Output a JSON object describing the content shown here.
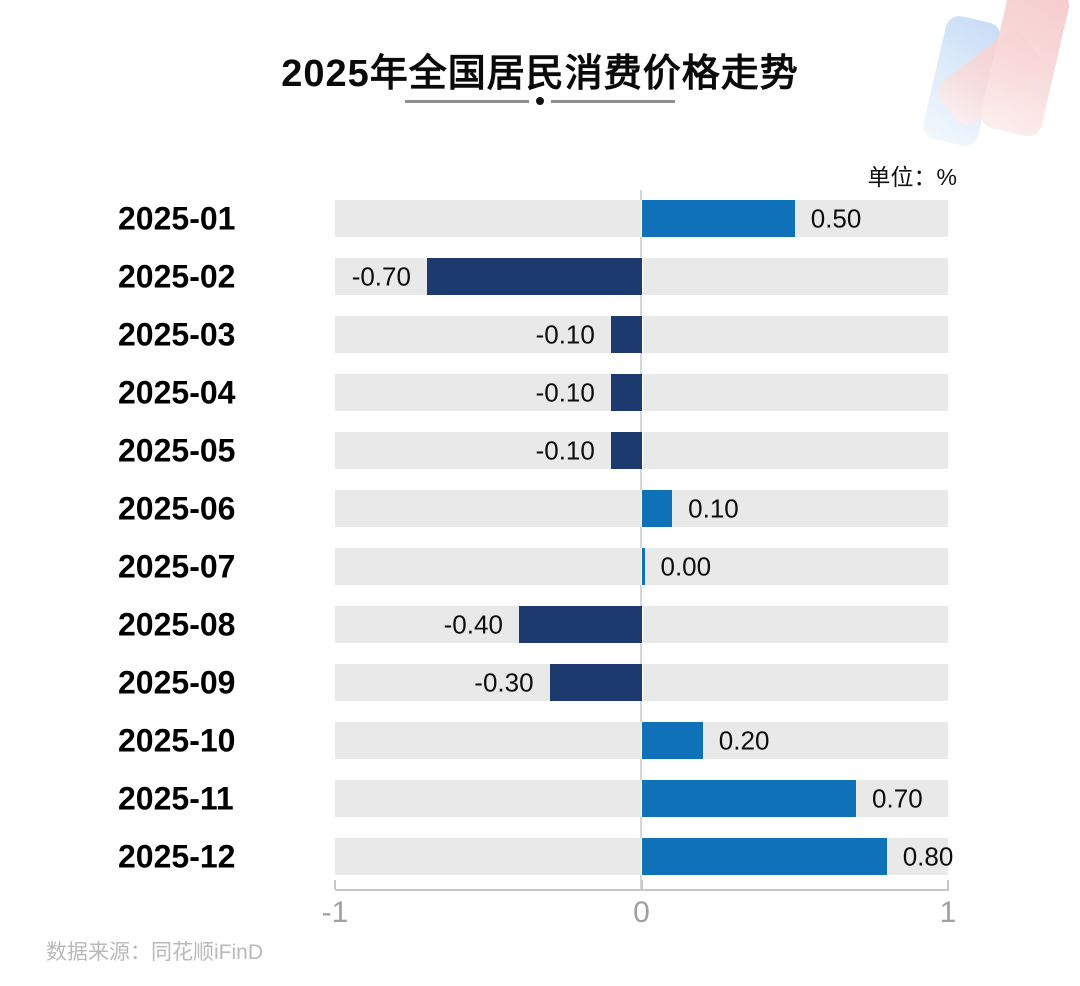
{
  "title": "2025年全国居民消费价格走势",
  "unit_label": "单位：%",
  "source": "数据来源：同花顺iFinD",
  "chart_data": {
    "type": "bar",
    "orientation": "horizontal",
    "title": "2025年全国居民消费价格走势",
    "unit": "%",
    "categories": [
      "2025-01",
      "2025-02",
      "2025-03",
      "2025-04",
      "2025-05",
      "2025-06",
      "2025-07",
      "2025-08",
      "2025-09",
      "2025-10",
      "2025-11",
      "2025-12"
    ],
    "values": [
      0.5,
      -0.7,
      -0.1,
      -0.1,
      -0.1,
      0.1,
      0.0,
      -0.4,
      -0.3,
      0.2,
      0.7,
      0.8
    ],
    "value_labels": [
      "0.50",
      "-0.70",
      "-0.10",
      "-0.10",
      "-0.10",
      "0.10",
      "0.00",
      "-0.40",
      "-0.30",
      "0.20",
      "0.70",
      "0.80"
    ],
    "xlim": [
      -1,
      1
    ],
    "x_tick_labels": [
      "-1",
      "0",
      "1"
    ],
    "x_tick_values": [
      -1,
      0,
      1
    ],
    "grid": false,
    "legend": "none",
    "source": "数据来源：同花顺iFinD",
    "colors": {
      "positive": "#0f72b8",
      "negative": "#1c3a6e",
      "track": "#e9e9e9",
      "axis": "#c7c7c7",
      "tick_label": "#a0a0a0"
    }
  }
}
